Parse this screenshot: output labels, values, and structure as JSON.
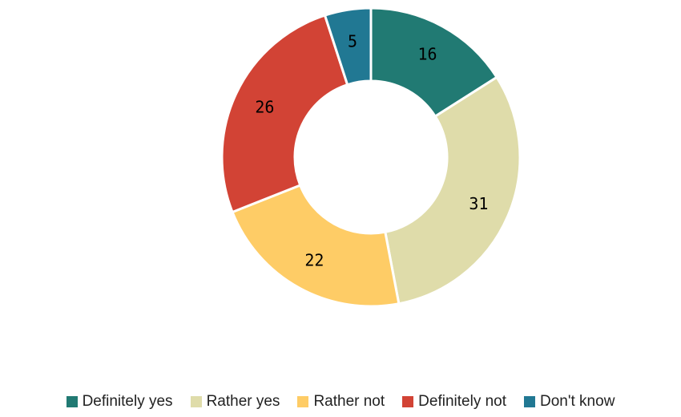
{
  "chart_data": {
    "type": "pie",
    "variant": "donut",
    "title": "",
    "legend_position": "bottom",
    "slices": [
      {
        "label": "Definitely yes",
        "value": 16,
        "color": "#217a73"
      },
      {
        "label": "Rather yes",
        "value": 31,
        "color": "#dfdcaa"
      },
      {
        "label": "Rather not",
        "value": 22,
        "color": "#fecc66"
      },
      {
        "label": "Definitely not",
        "value": 26,
        "color": "#d24335"
      },
      {
        "label": "Don't know",
        "value": 5,
        "color": "#217893"
      }
    ]
  }
}
